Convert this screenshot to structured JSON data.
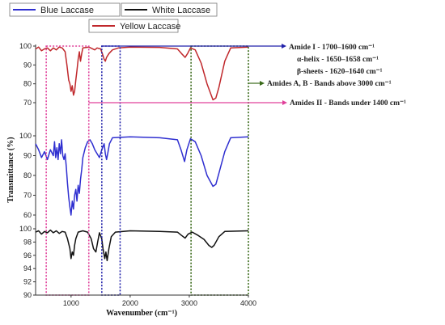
{
  "chart_data": {
    "type": "line",
    "xlabel": "Wavenumber (cm⁻¹)",
    "ylabel": "Transmittance (%)",
    "x_ticks": [
      1000,
      2000,
      3000,
      4000
    ],
    "xlim": [
      400,
      4000
    ],
    "legend": [
      {
        "name": "Blue Laccase",
        "color": "#2f2fd0"
      },
      {
        "name": "White Laccase",
        "color": "#111111"
      },
      {
        "name": "Yellow Laccase",
        "color": "#c0282c"
      }
    ],
    "panels": [
      {
        "series": "Yellow Laccase",
        "color": "#c0282c",
        "ylim": [
          70,
          100
        ],
        "y_ticks": [
          70,
          80,
          90,
          100
        ],
        "points": [
          [
            400,
            98.5
          ],
          [
            450,
            99.5
          ],
          [
            500,
            97.5
          ],
          [
            550,
            98.5
          ],
          [
            600,
            99
          ],
          [
            650,
            97.5
          ],
          [
            700,
            99
          ],
          [
            750,
            98
          ],
          [
            800,
            99.5
          ],
          [
            850,
            99
          ],
          [
            900,
            97
          ],
          [
            930,
            90
          ],
          [
            960,
            82
          ],
          [
            980,
            80
          ],
          [
            1000,
            76
          ],
          [
            1020,
            79
          ],
          [
            1040,
            74
          ],
          [
            1060,
            76
          ],
          [
            1080,
            82
          ],
          [
            1100,
            87
          ],
          [
            1120,
            93
          ],
          [
            1140,
            97
          ],
          [
            1160,
            92
          ],
          [
            1180,
            96
          ],
          [
            1200,
            99
          ],
          [
            1300,
            99.5
          ],
          [
            1400,
            98
          ],
          [
            1440,
            99
          ],
          [
            1500,
            98.5
          ],
          [
            1540,
            95
          ],
          [
            1560,
            93
          ],
          [
            1580,
            92
          ],
          [
            1600,
            94
          ],
          [
            1640,
            96
          ],
          [
            1700,
            98
          ],
          [
            1800,
            99
          ],
          [
            2000,
            99.5
          ],
          [
            2500,
            99.3
          ],
          [
            2800,
            98.5
          ],
          [
            2870,
            96
          ],
          [
            2930,
            94
          ],
          [
            2970,
            96
          ],
          [
            3020,
            99
          ],
          [
            3100,
            98
          ],
          [
            3200,
            91
          ],
          [
            3300,
            80
          ],
          [
            3400,
            71.5
          ],
          [
            3450,
            72.5
          ],
          [
            3500,
            78
          ],
          [
            3600,
            92
          ],
          [
            3700,
            99
          ],
          [
            4000,
            99.5
          ]
        ]
      },
      {
        "series": "Blue Laccase",
        "color": "#2f2fd0",
        "ylim": [
          60,
          100
        ],
        "y_ticks": [
          60,
          70,
          80,
          90,
          100
        ],
        "points": [
          [
            400,
            96
          ],
          [
            450,
            93
          ],
          [
            500,
            89
          ],
          [
            550,
            92
          ],
          [
            600,
            88
          ],
          [
            650,
            93
          ],
          [
            700,
            90
          ],
          [
            720,
            97
          ],
          [
            740,
            89
          ],
          [
            760,
            94
          ],
          [
            780,
            88
          ],
          [
            800,
            96
          ],
          [
            820,
            91
          ],
          [
            840,
            98
          ],
          [
            860,
            90
          ],
          [
            880,
            88
          ],
          [
            900,
            91
          ],
          [
            920,
            84
          ],
          [
            940,
            76
          ],
          [
            960,
            69
          ],
          [
            980,
            64
          ],
          [
            1000,
            60
          ],
          [
            1020,
            67
          ],
          [
            1040,
            63
          ],
          [
            1060,
            70
          ],
          [
            1080,
            73
          ],
          [
            1100,
            67
          ],
          [
            1120,
            75
          ],
          [
            1140,
            71
          ],
          [
            1160,
            78
          ],
          [
            1180,
            83
          ],
          [
            1200,
            89
          ],
          [
            1240,
            94
          ],
          [
            1280,
            97
          ],
          [
            1320,
            98
          ],
          [
            1360,
            96
          ],
          [
            1400,
            93
          ],
          [
            1440,
            91
          ],
          [
            1480,
            89
          ],
          [
            1520,
            93
          ],
          [
            1560,
            96
          ],
          [
            1580,
            91
          ],
          [
            1600,
            88
          ],
          [
            1620,
            91
          ],
          [
            1650,
            96
          ],
          [
            1700,
            99
          ],
          [
            2000,
            99.5
          ],
          [
            2500,
            99
          ],
          [
            2800,
            98
          ],
          [
            2860,
            93
          ],
          [
            2920,
            87
          ],
          [
            2960,
            93
          ],
          [
            3020,
            98.5
          ],
          [
            3100,
            97
          ],
          [
            3200,
            90
          ],
          [
            3300,
            80
          ],
          [
            3400,
            74.5
          ],
          [
            3450,
            75.5
          ],
          [
            3500,
            81
          ],
          [
            3600,
            92
          ],
          [
            3700,
            99
          ],
          [
            4000,
            99.5
          ]
        ]
      },
      {
        "series": "White Laccase",
        "color": "#111111",
        "ylim": [
          90,
          100
        ],
        "y_ticks": [
          90,
          92,
          94,
          96,
          98,
          100
        ],
        "points": [
          [
            400,
            99.5
          ],
          [
            450,
            99.7
          ],
          [
            500,
            99.2
          ],
          [
            550,
            99.6
          ],
          [
            600,
            99.4
          ],
          [
            650,
            99.8
          ],
          [
            700,
            99.4
          ],
          [
            750,
            99.7
          ],
          [
            800,
            99.3
          ],
          [
            850,
            99.6
          ],
          [
            900,
            99.5
          ],
          [
            940,
            98.5
          ],
          [
            980,
            97
          ],
          [
            1000,
            95.5
          ],
          [
            1020,
            96.5
          ],
          [
            1040,
            96
          ],
          [
            1060,
            97.5
          ],
          [
            1080,
            98.5
          ],
          [
            1120,
            99.5
          ],
          [
            1200,
            99.7
          ],
          [
            1280,
            99.5
          ],
          [
            1340,
            98.5
          ],
          [
            1380,
            97
          ],
          [
            1420,
            96.5
          ],
          [
            1450,
            98
          ],
          [
            1480,
            99.4
          ],
          [
            1520,
            98.5
          ],
          [
            1540,
            97
          ],
          [
            1570,
            95.5
          ],
          [
            1590,
            96.5
          ],
          [
            1610,
            95.2
          ],
          [
            1640,
            97
          ],
          [
            1680,
            98.8
          ],
          [
            1750,
            99.5
          ],
          [
            2000,
            99.7
          ],
          [
            2500,
            99.6
          ],
          [
            2800,
            99.5
          ],
          [
            2870,
            99
          ],
          [
            2930,
            98.6
          ],
          [
            2980,
            99.2
          ],
          [
            3050,
            99.5
          ],
          [
            3150,
            99
          ],
          [
            3250,
            98.4
          ],
          [
            3330,
            97.5
          ],
          [
            3380,
            97.2
          ],
          [
            3420,
            97.5
          ],
          [
            3500,
            98.8
          ],
          [
            3600,
            99.6
          ],
          [
            4000,
            99.7
          ]
        ]
      }
    ],
    "regions": [
      {
        "name": "fingerprint-region",
        "x0": 580,
        "x1": 1300,
        "color": "#e0409a"
      },
      {
        "name": "amide-i-region",
        "x0": 1520,
        "x1": 1830,
        "color": "#2222aa"
      },
      {
        "name": "amide-a-b-region",
        "x0": 3030,
        "x1": 4000,
        "color": "#3a6a1a"
      }
    ],
    "annotations": {
      "amide1_line1": "Amide I - 1700–1600 cm⁻¹",
      "amide1_line2": "α-helix - 1650–1658 cm⁻¹",
      "amide1_line3": "β-sheets - 1620–1640 cm⁻¹",
      "amidesAB": "Amides A, B - Bands above 3000 cm⁻¹",
      "amidesII": "Amides II - Bands under 1400 cm⁻¹"
    }
  }
}
